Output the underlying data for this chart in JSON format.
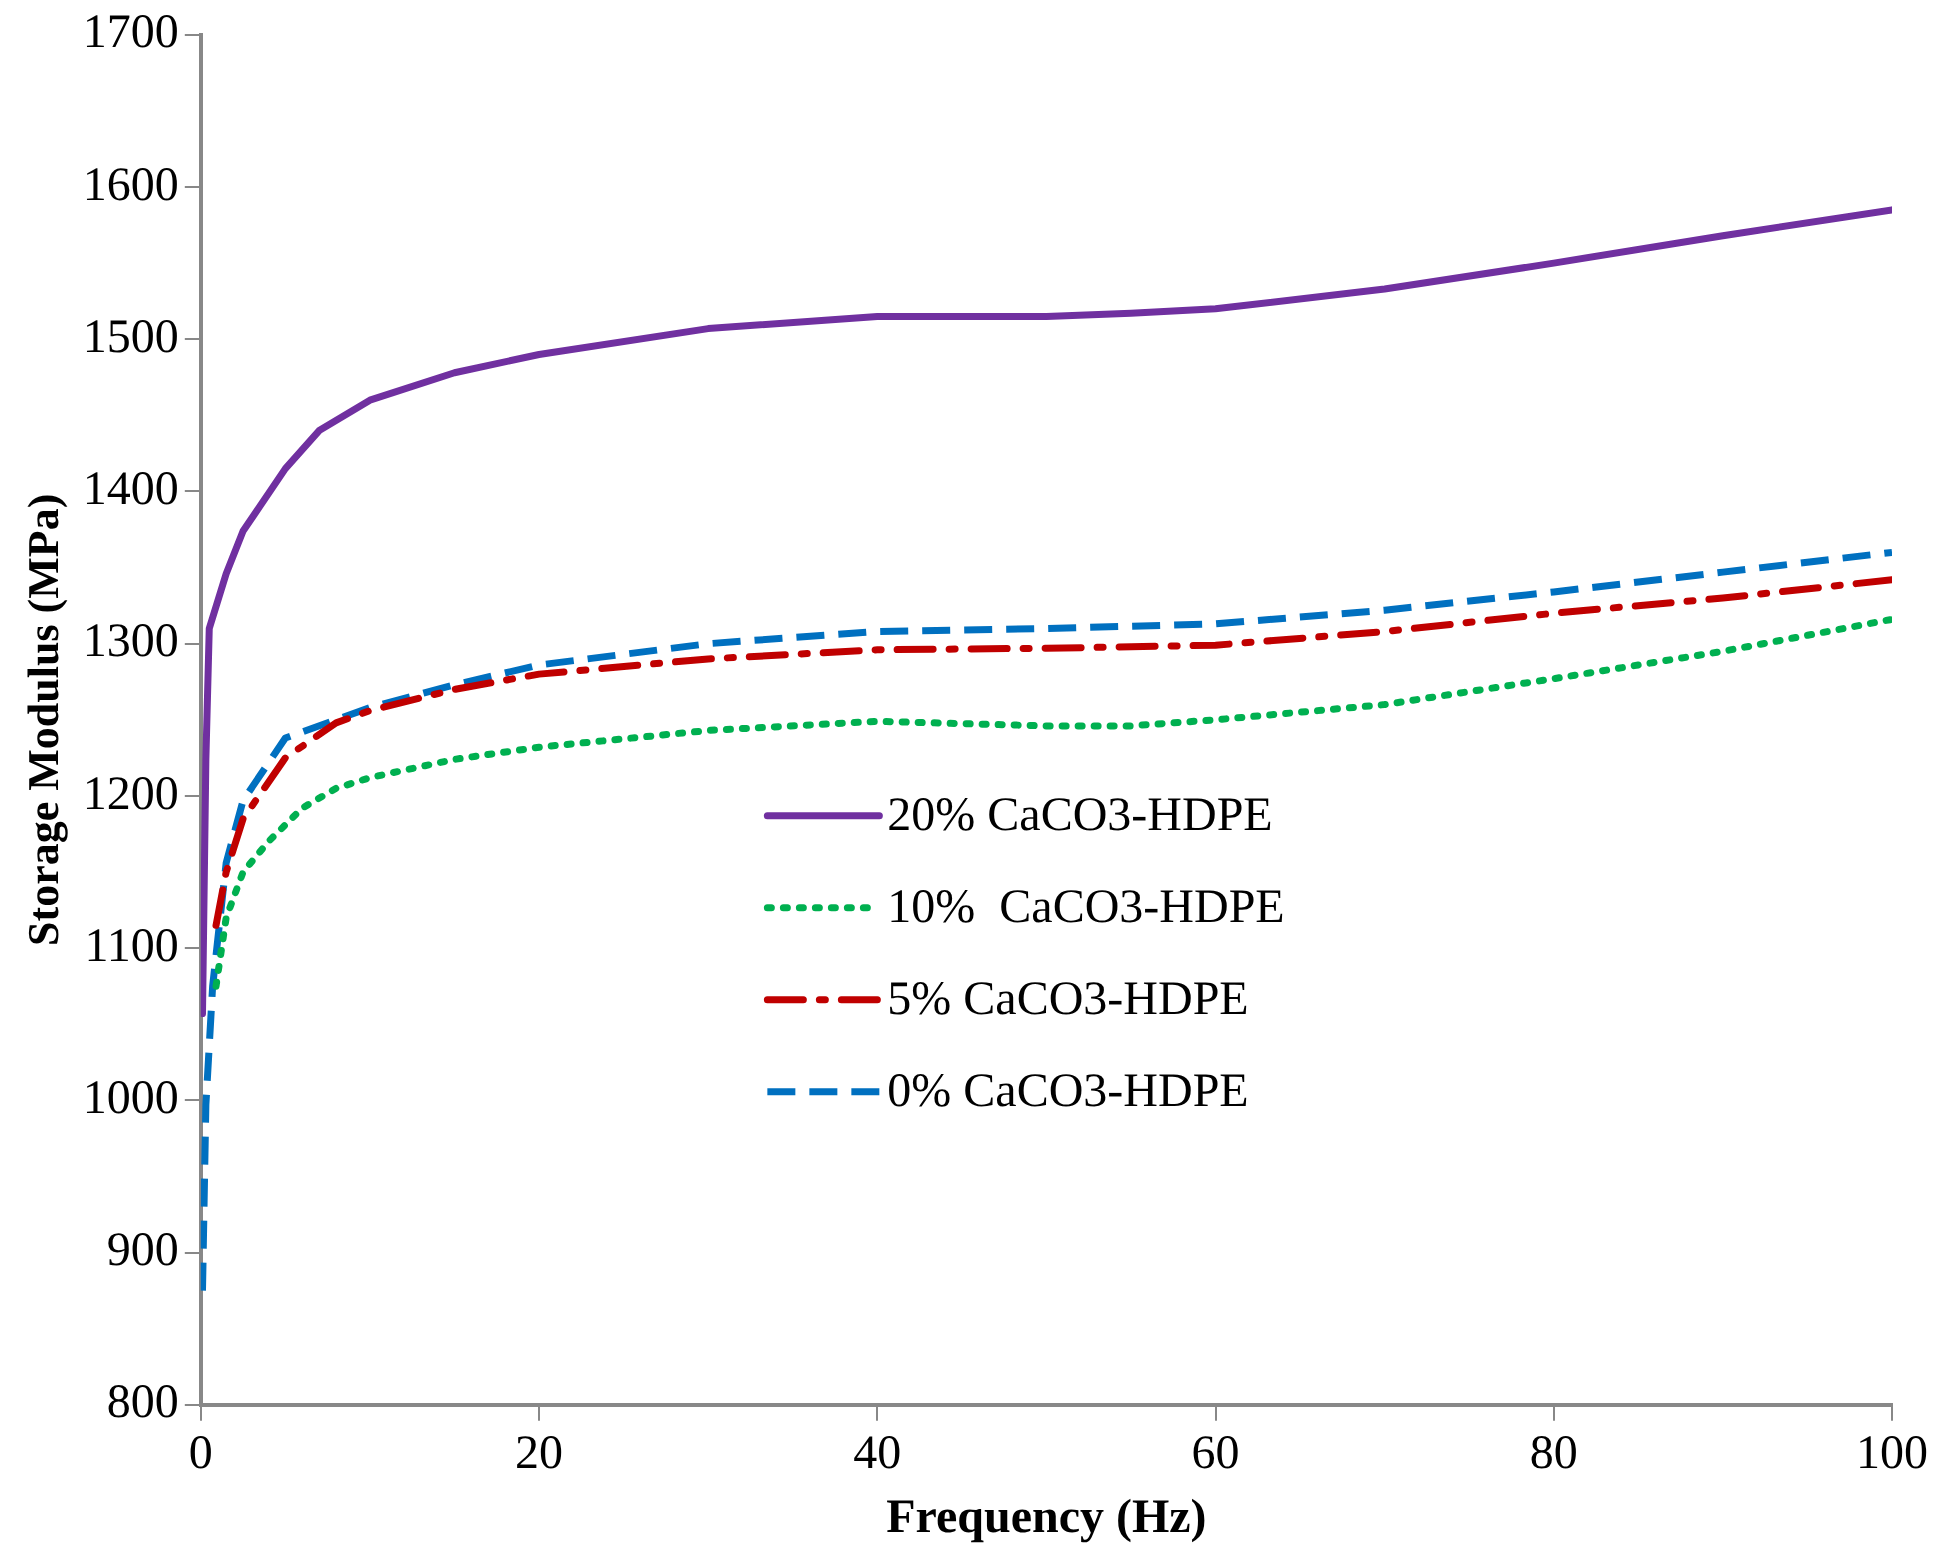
{
  "chart_data": {
    "type": "line",
    "xlabel": "Frequency (Hz)",
    "ylabel": "Storage Modulus (MPa)",
    "xlim": [
      0,
      100
    ],
    "xticks": [
      0,
      20,
      40,
      60,
      80,
      100
    ],
    "ylim": [
      800,
      1700
    ],
    "yticks": [
      800,
      900,
      1000,
      1100,
      1200,
      1300,
      1400,
      1500,
      1600,
      1700
    ],
    "grid": false,
    "legend": "center",
    "marker": "none",
    "series": [
      {
        "name": "20% CaCO3-HDPE",
        "color": "#7030a0",
        "line_style": "solid",
        "x": [
          0.1,
          0.3,
          0.5,
          1.5,
          2.5,
          5,
          7,
          10,
          15,
          20,
          30,
          40,
          50,
          55,
          60,
          70,
          80,
          90,
          100
        ],
        "values": [
          1057,
          1224,
          1310,
          1346,
          1374,
          1415,
          1440,
          1460,
          1478,
          1490,
          1507,
          1515,
          1515,
          1517,
          1520,
          1533,
          1550,
          1568,
          1585
        ]
      },
      {
        "name": "10%  CaCO3-HDPE",
        "color": "#00b050",
        "line_style": "dotted",
        "x": [
          0.9,
          1.5,
          2.5,
          4,
          6,
          8,
          10,
          15,
          20,
          30,
          40,
          50,
          55,
          60,
          70,
          80,
          90,
          100
        ],
        "values": [
          1075,
          1120,
          1150,
          1170,
          1192,
          1205,
          1212,
          1224,
          1232,
          1243,
          1249,
          1246,
          1246,
          1250,
          1260,
          1277,
          1295,
          1316
        ]
      },
      {
        "name": "5% CaCO3-HDPE",
        "color": "#c00000",
        "line_style": "dashdot",
        "x": [
          0.9,
          1.5,
          2.5,
          5,
          8,
          10,
          15,
          20,
          30,
          40,
          50,
          60,
          70,
          80,
          90,
          100
        ],
        "values": [
          1115,
          1150,
          1185,
          1225,
          1248,
          1256,
          1270,
          1280,
          1290,
          1296,
          1297,
          1299,
          1308,
          1320,
          1330,
          1342
        ]
      },
      {
        "name": "0% CaCO3-HDPE",
        "color": "#0070c0",
        "line_style": "dashed",
        "x": [
          0.1,
          0.3,
          0.7,
          1.5,
          2.5,
          5,
          8,
          10,
          15,
          20,
          30,
          40,
          50,
          60,
          70,
          80,
          90,
          100
        ],
        "values": [
          875,
          997,
          1075,
          1156,
          1197,
          1238,
          1250,
          1258,
          1273,
          1286,
          1300,
          1308,
          1310,
          1313,
          1322,
          1334,
          1347,
          1360
        ]
      }
    ]
  }
}
